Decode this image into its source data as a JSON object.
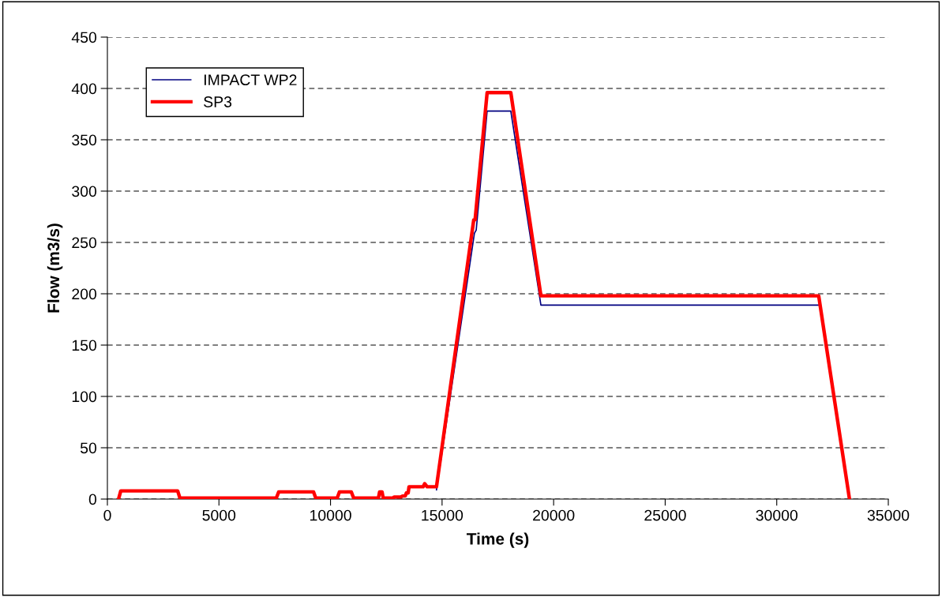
{
  "chart_data": {
    "type": "line",
    "xlabel": "Time (s)",
    "ylabel": "Flow (m3/s)",
    "xlim": [
      0,
      35000
    ],
    "xticks": [
      0,
      5000,
      10000,
      15000,
      20000,
      25000,
      30000,
      35000
    ],
    "ylim": [
      0,
      450
    ],
    "yticks": [
      0,
      50,
      100,
      150,
      200,
      250,
      300,
      350,
      400,
      450
    ],
    "grid": "y",
    "legend": "top left",
    "marker": "none",
    "line_style": "solid",
    "series": [
      {
        "name": "IMPACT WP2",
        "color": "#000080",
        "x": [
          14750,
          16450,
          16530,
          17020,
          18080,
          19430,
          31880
        ],
        "values": [
          9,
          259,
          262,
          378,
          378,
          189,
          189
        ]
      },
      {
        "name": "SP3",
        "color": "#ff0000",
        "x": [
          500,
          600,
          3150,
          3250,
          7570,
          7680,
          9240,
          9340,
          10300,
          10400,
          10930,
          11040,
          12150,
          12200,
          12310,
          12360,
          12800,
          12850,
          13150,
          13230,
          13350,
          13400,
          13480,
          13520,
          14150,
          14220,
          14330,
          14610,
          14750,
          16420,
          16480,
          17020,
          18080,
          19430,
          31880,
          33260
        ],
        "values": [
          0,
          8,
          8,
          1,
          1,
          7,
          7,
          1,
          1,
          7,
          7,
          1,
          1,
          7,
          7,
          1,
          1,
          2,
          2,
          3,
          3,
          6,
          6,
          12,
          12,
          15,
          12,
          12,
          12,
          272,
          272,
          396,
          396,
          198,
          198,
          0
        ]
      }
    ]
  }
}
